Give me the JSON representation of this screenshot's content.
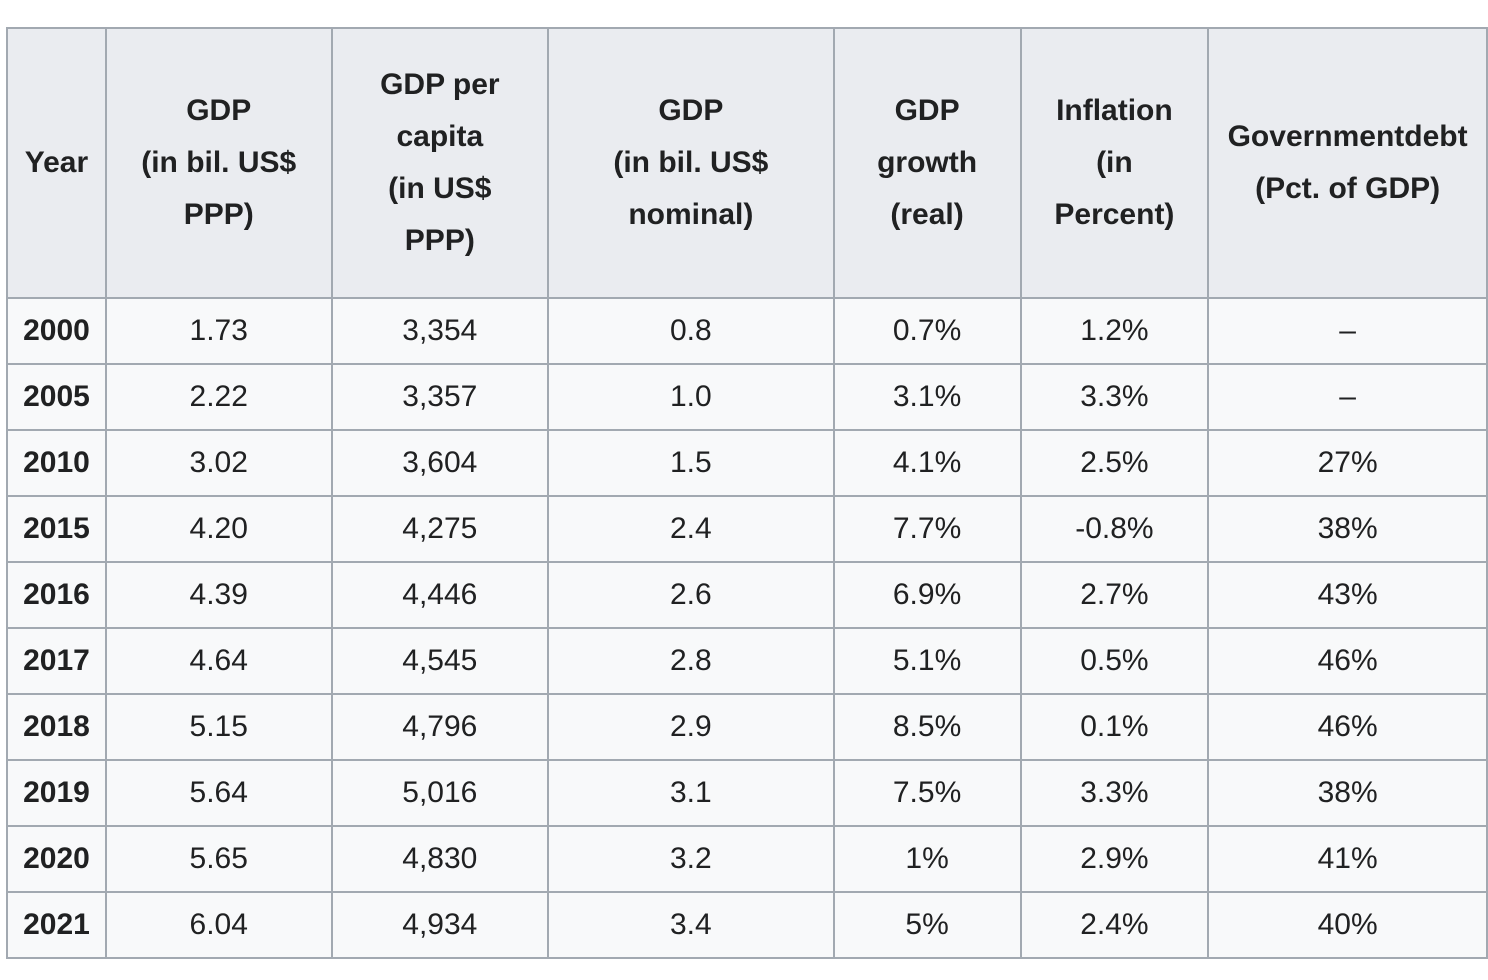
{
  "table": {
    "headers": [
      {
        "lines": [
          "Year"
        ]
      },
      {
        "lines": [
          "GDP",
          "(in bil. US$",
          "PPP)"
        ]
      },
      {
        "lines": [
          "GDP per",
          "capita",
          "(in US$",
          "PPP)"
        ]
      },
      {
        "lines": [
          "GDP",
          "(in bil. US$",
          "nominal)"
        ]
      },
      {
        "lines": [
          "GDP",
          "growth",
          "(real)"
        ]
      },
      {
        "lines": [
          "Inflation",
          "(in",
          "Percent)"
        ]
      },
      {
        "lines": [
          "Governmentdebt",
          "(Pct. of GDP)"
        ]
      }
    ],
    "rows": [
      {
        "year": "2000",
        "gdp_ppp": "1.73",
        "gdp_per_capita": "3,354",
        "gdp_nominal": "0.8",
        "growth": "0.7%",
        "inflation": "1.2%",
        "debt": "–"
      },
      {
        "year": "2005",
        "gdp_ppp": "2.22",
        "gdp_per_capita": "3,357",
        "gdp_nominal": "1.0",
        "growth": "3.1%",
        "inflation": "3.3%",
        "debt": "–"
      },
      {
        "year": "2010",
        "gdp_ppp": "3.02",
        "gdp_per_capita": "3,604",
        "gdp_nominal": "1.5",
        "growth": "4.1%",
        "inflation": "2.5%",
        "debt": "27%"
      },
      {
        "year": "2015",
        "gdp_ppp": "4.20",
        "gdp_per_capita": "4,275",
        "gdp_nominal": "2.4",
        "growth": "7.7%",
        "inflation": "-0.8%",
        "debt": "38%"
      },
      {
        "year": "2016",
        "gdp_ppp": "4.39",
        "gdp_per_capita": "4,446",
        "gdp_nominal": "2.6",
        "growth": "6.9%",
        "inflation": "2.7%",
        "debt": "43%"
      },
      {
        "year": "2017",
        "gdp_ppp": "4.64",
        "gdp_per_capita": "4,545",
        "gdp_nominal": "2.8",
        "growth": "5.1%",
        "inflation": "0.5%",
        "debt": "46%"
      },
      {
        "year": "2018",
        "gdp_ppp": "5.15",
        "gdp_per_capita": "4,796",
        "gdp_nominal": "2.9",
        "growth": "8.5%",
        "inflation": "0.1%",
        "debt": "46%"
      },
      {
        "year": "2019",
        "gdp_ppp": "5.64",
        "gdp_per_capita": "5,016",
        "gdp_nominal": "3.1",
        "growth": "7.5%",
        "inflation": "3.3%",
        "debt": "38%"
      },
      {
        "year": "2020",
        "gdp_ppp": "5.65",
        "gdp_per_capita": "4,830",
        "gdp_nominal": "3.2",
        "growth": "1%",
        "inflation": "2.9%",
        "debt": "41%"
      },
      {
        "year": "2021",
        "gdp_ppp": "6.04",
        "gdp_per_capita": "4,934",
        "gdp_nominal": "3.4",
        "growth": "5%",
        "inflation": "2.4%",
        "debt": "40%"
      }
    ]
  }
}
